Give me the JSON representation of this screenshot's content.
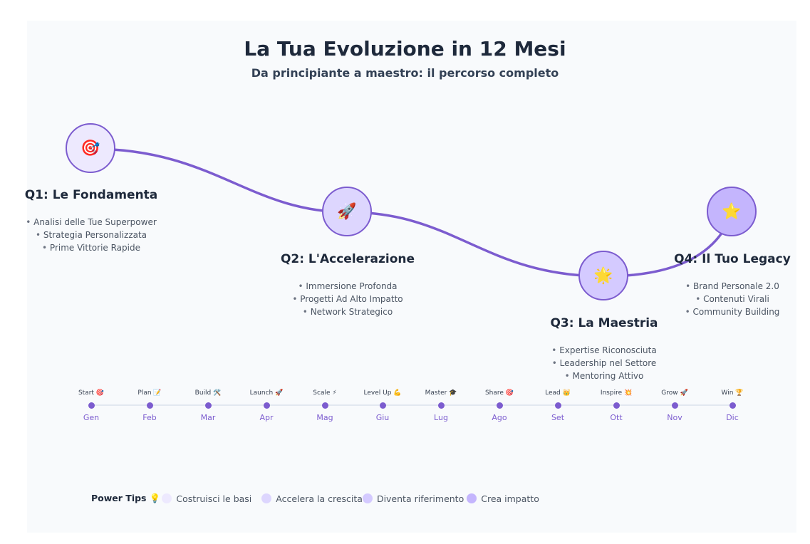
{
  "header": {
    "title": "La Tua Evoluzione in 12 Mesi",
    "subtitle": "Da principiante a maestro: il percorso completo"
  },
  "colors": {
    "accent": "#7c5ccf",
    "q1_fill": "#ede9fe",
    "q2_fill": "#ddd6fe",
    "q3_fill": "#d4caff",
    "q4_fill": "#c4b5fd"
  },
  "quarters": [
    {
      "icon": "🎯",
      "icon_name": "target-icon",
      "title": "Q1: Le Fondamenta",
      "items": [
        "Analisi delle Tue Superpower",
        "Strategia Personalizzata",
        "Prime Vittorie Rapide"
      ]
    },
    {
      "icon": "🚀",
      "icon_name": "rocket-icon",
      "title": "Q2: L'Accelerazione",
      "items": [
        "Immersione Profonda",
        "Progetti Ad Alto Impatto",
        "Network Strategico"
      ]
    },
    {
      "icon": "🌟",
      "icon_name": "spinning-star-icon",
      "title": "Q3: La Maestria",
      "items": [
        "Expertise Riconosciuta",
        "Leadership nel Settore",
        "Mentoring Attivo"
      ]
    },
    {
      "icon": "⭐",
      "icon_name": "sparkle-star-icon",
      "title": "Q4: Il Tuo Legacy",
      "items": [
        "Brand Personale 2.0",
        "Contenuti Virali",
        "Community Building"
      ]
    }
  ],
  "timeline": [
    {
      "label": "Start 🎯",
      "month": "Gen"
    },
    {
      "label": "Plan 📝",
      "month": "Feb"
    },
    {
      "label": "Build 🛠️",
      "month": "Mar"
    },
    {
      "label": "Launch 🚀",
      "month": "Apr"
    },
    {
      "label": "Scale ⚡",
      "month": "Mag"
    },
    {
      "label": "Level Up 💪",
      "month": "Giu"
    },
    {
      "label": "Master 🎓",
      "month": "Lug"
    },
    {
      "label": "Share 🎯",
      "month": "Ago"
    },
    {
      "label": "Lead 👑",
      "month": "Set"
    },
    {
      "label": "Inspire 💥",
      "month": "Ott"
    },
    {
      "label": "Grow 🚀",
      "month": "Nov"
    },
    {
      "label": "Win 🏆",
      "month": "Dic"
    }
  ],
  "legend": {
    "title": "Power Tips 💡",
    "items": [
      {
        "label": "Costruisci le basi",
        "color": "#ede9fe"
      },
      {
        "label": "Accelera la crescita",
        "color": "#ddd6fe"
      },
      {
        "label": "Diventa riferimento",
        "color": "#d4caff"
      },
      {
        "label": "Crea impatto",
        "color": "#c4b5fd"
      }
    ]
  }
}
